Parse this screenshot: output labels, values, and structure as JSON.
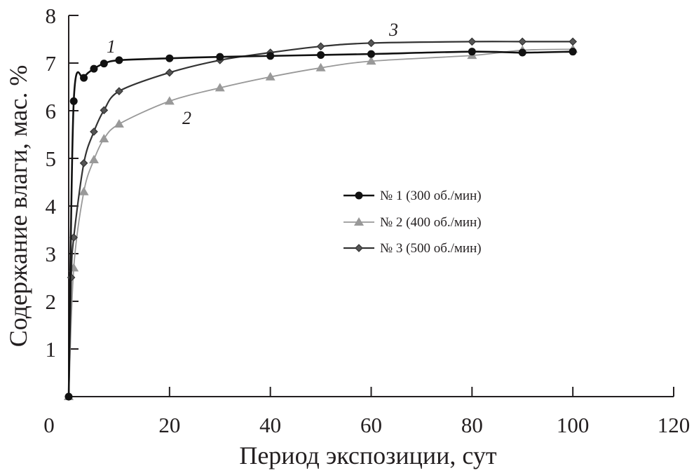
{
  "chart_data": {
    "type": "line",
    "title": "",
    "xlabel": "Период экспозиции, сут",
    "ylabel": "Содержание влаги, мас. %",
    "xlim": [
      0,
      120
    ],
    "ylim": [
      0,
      8
    ],
    "xticks": [
      "0",
      "20",
      "40",
      "60",
      "80",
      "100",
      "120"
    ],
    "yticks": [
      "1",
      "2",
      "3",
      "4",
      "5",
      "6",
      "7",
      "8"
    ],
    "grid": false,
    "legend_position": "center-right",
    "series": [
      {
        "name": "№ 1 (300 об./мин)",
        "curve_label": "1",
        "color": "#111111",
        "marker": "circle",
        "x": [
          0,
          1,
          3,
          5,
          7,
          10,
          20,
          30,
          40,
          50,
          60,
          80,
          90,
          100
        ],
        "y": [
          0,
          6.2,
          6.69,
          6.88,
          6.99,
          7.06,
          7.1,
          7.13,
          7.15,
          7.17,
          7.19,
          7.24,
          7.22,
          7.24
        ]
      },
      {
        "name": "№ 2 (400 об./мин)",
        "curve_label": "2",
        "color": "#999999",
        "marker": "triangle",
        "x": [
          0,
          1,
          3,
          5,
          7,
          10,
          20,
          30,
          40,
          50,
          60,
          80,
          90,
          100
        ],
        "y": [
          0,
          2.7,
          4.3,
          4.97,
          5.41,
          5.72,
          6.2,
          6.48,
          6.71,
          6.9,
          7.04,
          7.16,
          7.27,
          7.29
        ]
      },
      {
        "name": "№ 3 (500 об./мин)",
        "curve_label": "3",
        "color": "#333333",
        "marker": "diamond",
        "x": [
          0,
          0.5,
          1,
          3,
          5,
          7,
          10,
          20,
          30,
          40,
          50,
          60,
          80,
          90,
          100
        ],
        "y": [
          0,
          2.5,
          3.34,
          4.9,
          5.56,
          6.01,
          6.41,
          6.8,
          7.06,
          7.22,
          7.35,
          7.42,
          7.45,
          7.45,
          7.45
        ]
      }
    ]
  }
}
